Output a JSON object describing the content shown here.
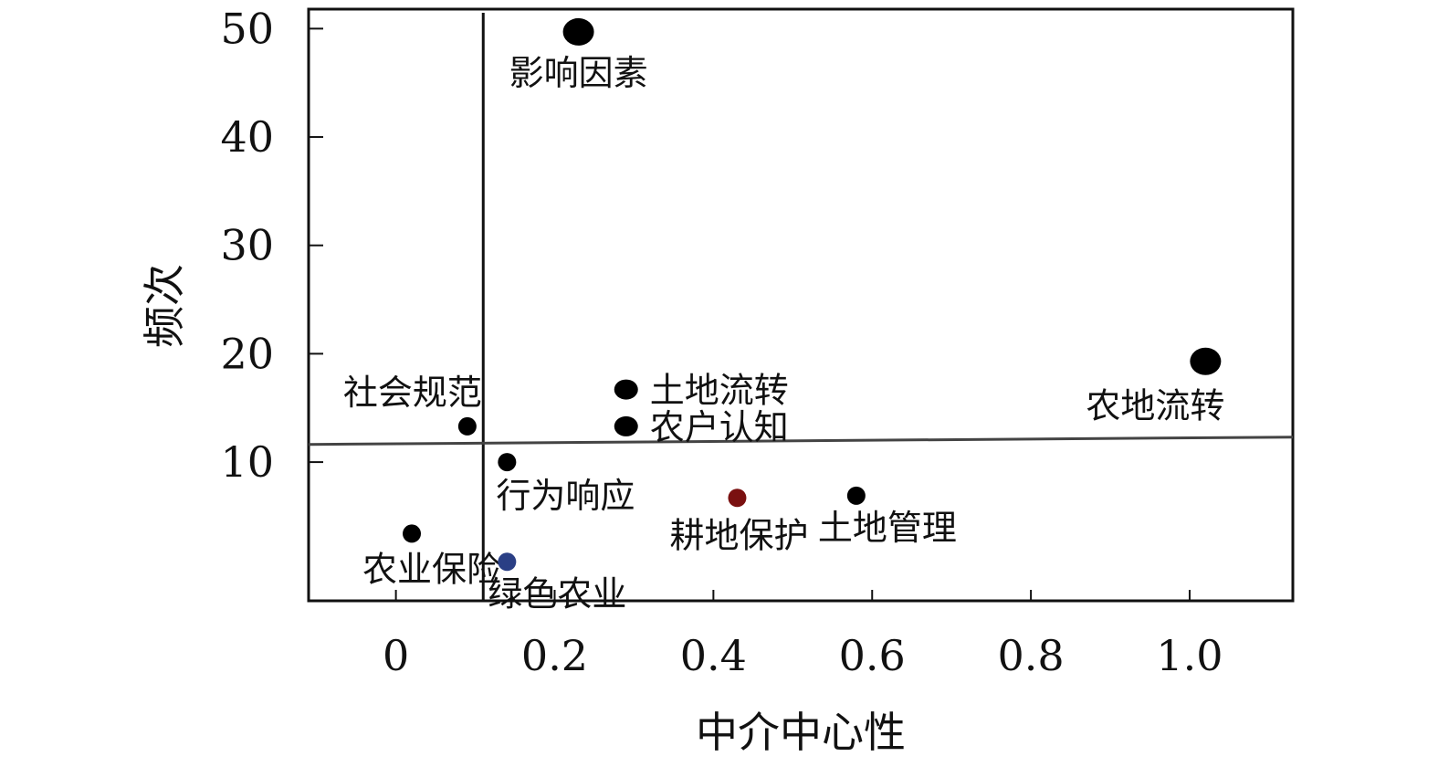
{
  "chart_data": {
    "type": "scatter",
    "xlabel": "中介中心性",
    "ylabel": "频次",
    "xlim": [
      -0.11,
      1.13
    ],
    "ylim": [
      -2.8,
      51.8
    ],
    "xticks": [
      0,
      0.2,
      0.4,
      0.6,
      0.8,
      1.0
    ],
    "xtick_labels": [
      "0",
      "0.2",
      "0.4",
      "0.6",
      "0.8",
      "1.0"
    ],
    "yticks": [
      10,
      20,
      30,
      40,
      50
    ],
    "ytick_labels": [
      "10",
      "20",
      "30",
      "40",
      "50"
    ],
    "grid": false,
    "reference_lines": {
      "x": 0.11,
      "y": 11.8
    },
    "points": [
      {
        "label": "影响因素",
        "x": 0.23,
        "y": 49.7,
        "color": "#000000",
        "size": "large"
      },
      {
        "label": "农地流转",
        "x": 1.02,
        "y": 19.3,
        "color": "#000000",
        "size": "large"
      },
      {
        "label": "土地流转",
        "x": 0.29,
        "y": 16.7,
        "color": "#000000",
        "size": "medium"
      },
      {
        "label": "农户认知",
        "x": 0.29,
        "y": 13.3,
        "color": "#000000",
        "size": "medium"
      },
      {
        "label": "社会规范",
        "x": 0.09,
        "y": 13.3,
        "color": "#000000",
        "size": "small"
      },
      {
        "label": "行为响应",
        "x": 0.14,
        "y": 10.0,
        "color": "#000000",
        "size": "small"
      },
      {
        "label": "耕地保护",
        "x": 0.43,
        "y": 6.7,
        "color": "#7a1010",
        "size": "small"
      },
      {
        "label": "土地管理",
        "x": 0.58,
        "y": 6.9,
        "color": "#000000",
        "size": "small"
      },
      {
        "label": "农业保险",
        "x": 0.02,
        "y": 3.4,
        "color": "#000000",
        "size": "small"
      },
      {
        "label": "绿色农业",
        "x": 0.14,
        "y": 0.8,
        "color": "#2a3f85",
        "size": "small"
      }
    ]
  }
}
